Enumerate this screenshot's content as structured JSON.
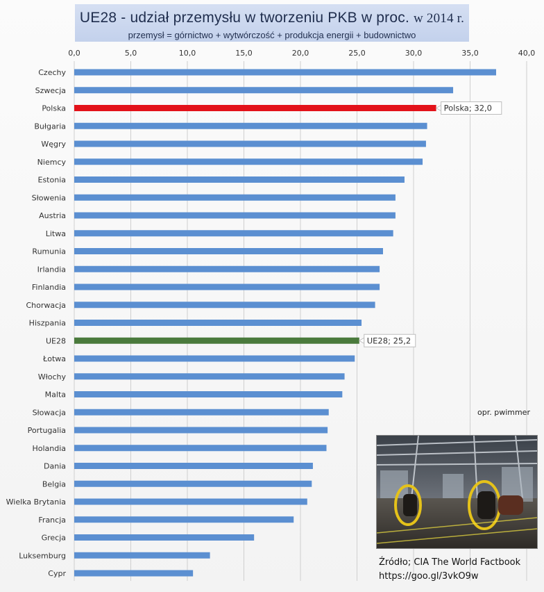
{
  "header": {
    "title_main": "UE28 - udział przemysłu w tworzeniu PKB w proc.",
    "title_year": "w 2014 r.",
    "subtitle": "przemysł = górnictwo + wytwórczość + produkcja energii + budownictwo"
  },
  "credit": "opr. pwimmer",
  "source": {
    "line1": "Źródło; CIA The World Factbook",
    "line2": "https://goo.gl/3vkO9w"
  },
  "chart_data": {
    "type": "bar",
    "orientation": "horizontal",
    "title": "UE28 - udział przemysłu w tworzeniu PKB w proc. w 2014 r.",
    "subtitle": "przemysł = górnictwo + wytwórczość + produkcja energii + budownictwo",
    "xlim": [
      0,
      40
    ],
    "x_ticks": [
      "0,0",
      "5,0",
      "10,0",
      "15,0",
      "20,0",
      "25,0",
      "30,0",
      "35,0",
      "40,0"
    ],
    "grid": true,
    "categories": [
      "Czechy",
      "Szwecja",
      "Polska",
      "Bułgaria",
      "Węgry",
      "Niemcy",
      "Estonia",
      "Słowenia",
      "Austria",
      "Litwa",
      "Rumunia",
      "Irlandia",
      "Finlandia",
      "Chorwacja",
      "Hiszpania",
      "UE28",
      "Łotwa",
      "Włochy",
      "Malta",
      "Słowacja",
      "Portugalia",
      "Holandia",
      "Dania",
      "Belgia",
      "Wielka Brytania",
      "Francja",
      "Grecja",
      "Luksemburg",
      "Cypr"
    ],
    "values": [
      37.3,
      33.5,
      32.0,
      31.2,
      31.1,
      30.8,
      29.2,
      28.4,
      28.4,
      28.2,
      27.3,
      27.0,
      27.0,
      26.6,
      25.4,
      25.2,
      24.8,
      23.9,
      23.7,
      22.5,
      22.4,
      22.3,
      21.1,
      21.0,
      20.6,
      19.4,
      15.9,
      12.0,
      10.5
    ],
    "colors": {
      "default": "#5b8fd1",
      "Polska": "#e3121a",
      "UE28": "#4a7a3c"
    },
    "annotations": [
      {
        "category": "Polska",
        "text": "Polska; 32,0"
      },
      {
        "category": "UE28",
        "text": "UE28; 25,2"
      }
    ]
  }
}
